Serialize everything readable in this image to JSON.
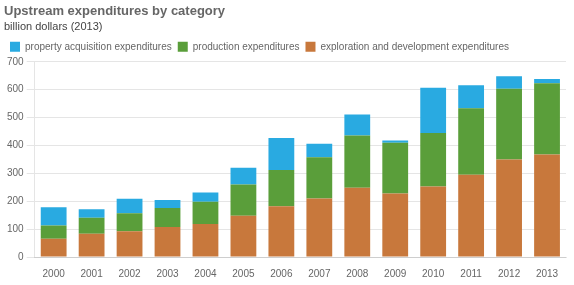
{
  "chart_data": {
    "type": "bar",
    "title": "Upstream expenditures by category",
    "subtitle": "billion dollars (2013)",
    "categories": [
      "2000",
      "2001",
      "2002",
      "2003",
      "2004",
      "2005",
      "2006",
      "2007",
      "2008",
      "2009",
      "2010",
      "2011",
      "2012",
      "2013"
    ],
    "series": [
      {
        "name": "exploration and development expenditures",
        "color": "#c8783c",
        "values": [
          65,
          83,
          92,
          108,
          118,
          148,
          182,
          210,
          248,
          228,
          253,
          295,
          350,
          368
        ]
      },
      {
        "name": "production expenditures",
        "color": "#5a9e3a",
        "values": [
          48,
          58,
          65,
          68,
          80,
          112,
          130,
          148,
          188,
          182,
          192,
          238,
          253,
          255
        ]
      },
      {
        "name": "property acquisition expenditures",
        "color": "#29aae1",
        "values": [
          65,
          30,
          52,
          28,
          33,
          60,
          115,
          48,
          75,
          8,
          162,
          83,
          45,
          15
        ]
      }
    ],
    "stacked": true,
    "ylim": [
      0,
      700
    ],
    "yticks": [
      0,
      100,
      200,
      300,
      400,
      500,
      600,
      700
    ],
    "grid": true,
    "legend": "upper left"
  }
}
